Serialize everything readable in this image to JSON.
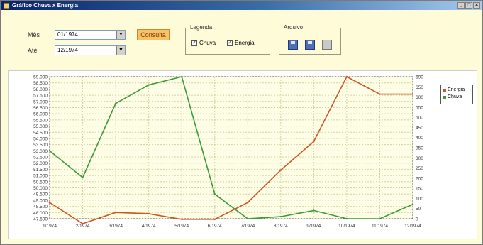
{
  "window": {
    "title": "Gráfico Chuva x Energia",
    "minimize": "_",
    "maximize": "□",
    "close": "×"
  },
  "filters": {
    "from_label": "Mês",
    "from_value": "01/1974",
    "to_label": "Até",
    "to_value": "12/1974",
    "consult_button": "Consulta"
  },
  "legend_group": {
    "title": "Legenda",
    "chuva_label": "Chuva",
    "energia_label": "Energia",
    "chuva_checked": true,
    "energia_checked": true
  },
  "file_group": {
    "title": "Arquivo",
    "icons": [
      "save-icon",
      "save-as-icon",
      "print-icon"
    ]
  },
  "colors": {
    "energia": "#cc5522",
    "chuva": "#3a9a3a",
    "grid": "#d2d2a0",
    "plot_bg": "#fefee6"
  },
  "chart_data": {
    "type": "line",
    "categories": [
      "1/1974",
      "2/1974",
      "3/1974",
      "4/1974",
      "5/1974",
      "6/1974",
      "7/1974",
      "8/1974",
      "9/1974",
      "10/1974",
      "11/1974",
      "12/1974"
    ],
    "series": [
      {
        "name": "Energia",
        "axis": "left",
        "color": "#cc5522",
        "values": [
          48900,
          47200,
          48100,
          48000,
          47550,
          47550,
          48900,
          51500,
          53800,
          59000,
          57600,
          57600
        ]
      },
      {
        "name": "Chuva",
        "axis": "right",
        "color": "#3a9a3a",
        "values": [
          330,
          200,
          560,
          650,
          690,
          120,
          0,
          10,
          40,
          0,
          0,
          70
        ]
      }
    ],
    "left_axis": {
      "min": 47600,
      "max": 59000,
      "ticks": [
        "59.000",
        "58.500",
        "58.000",
        "57.500",
        "57.000",
        "56.500",
        "56.000",
        "55.500",
        "55.000",
        "54.500",
        "54.000",
        "53.500",
        "53.000",
        "52.500",
        "52.000",
        "51.500",
        "51.000",
        "50.500",
        "50.000",
        "49.500",
        "49.000",
        "48.500",
        "48.000",
        "47.600"
      ]
    },
    "right_axis": {
      "min": 0,
      "max": 690,
      "ticks": [
        "690",
        "650",
        "600",
        "550",
        "500",
        "450",
        "400",
        "350",
        "300",
        "250",
        "200",
        "150",
        "100",
        "50",
        "0"
      ]
    },
    "legend": {
      "entries": [
        "Energia",
        "Chuva"
      ],
      "placement": "right"
    },
    "grid": true
  }
}
